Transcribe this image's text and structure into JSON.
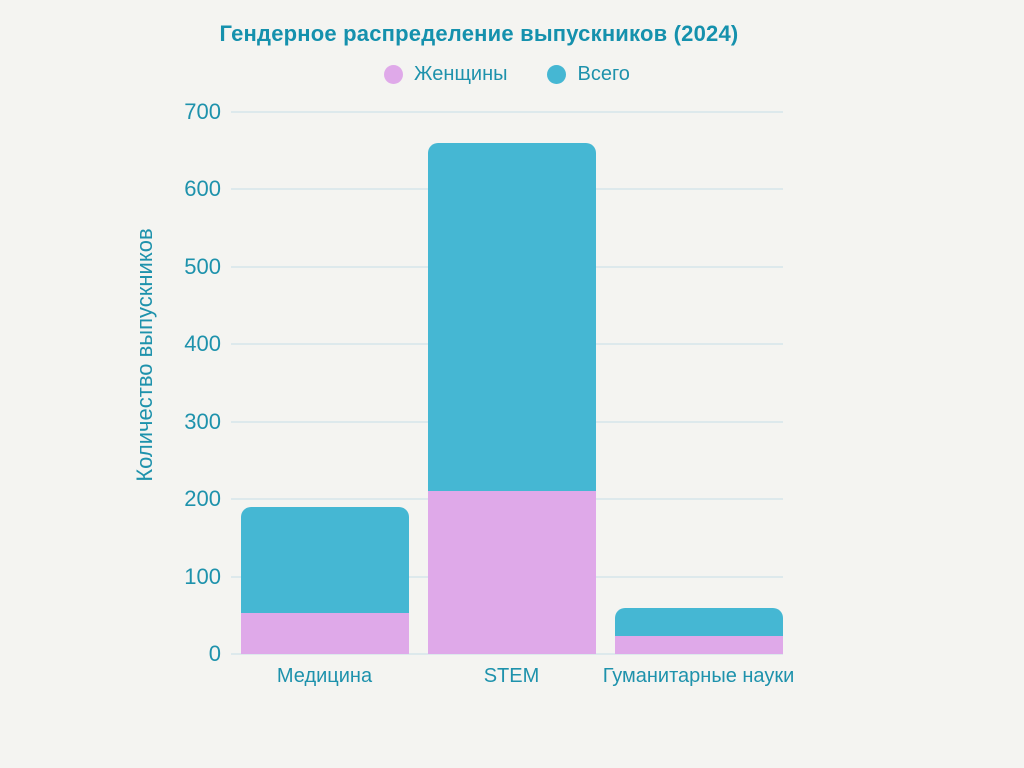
{
  "title": "Гендерное распределение выпускников (2024)",
  "legend": [
    {
      "label": "Женщины",
      "color": "#dfa9e9"
    },
    {
      "label": "Всего",
      "color": "#45b7d3"
    }
  ],
  "colors": {
    "background": "#f4f4f1",
    "bar_total": "#45b7d3",
    "bar_women": "#dfa9e9",
    "title_text": "#1591ad",
    "axis_text": "#1e92ac",
    "gridline": "#dde9ec"
  },
  "chart_data": {
    "type": "bar",
    "title": "Гендерное распределение выпускников (2024)",
    "categories": [
      "Медицина",
      "STEM",
      "Гуманитарные науки"
    ],
    "series": [
      {
        "name": "Женщины",
        "values": [
          53,
          210,
          23
        ],
        "color": "#dfa9e9",
        "render": "overlay-front"
      },
      {
        "name": "Всего",
        "values": [
          190,
          660,
          60
        ],
        "color": "#45b7d3",
        "render": "background-total"
      }
    ],
    "xlabel": "",
    "ylabel": "Количество выпускников",
    "ylim": [
      0,
      700
    ],
    "yticks": [
      0,
      100,
      200,
      300,
      400,
      500,
      600,
      700
    ],
    "grid": true,
    "legend_position": "top-center"
  }
}
